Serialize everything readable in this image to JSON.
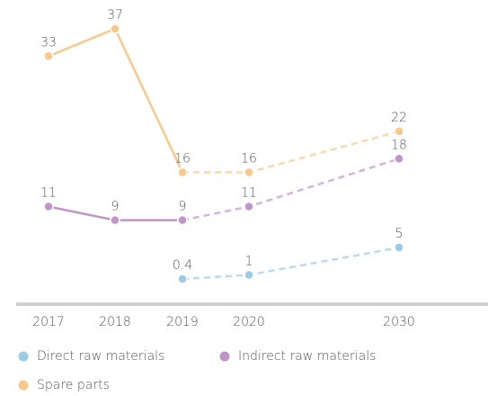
{
  "chart_data": {
    "type": "line",
    "categories": [
      "2017",
      "2018",
      "2019",
      "2020",
      "2030"
    ],
    "series": [
      {
        "name": "Direct raw materials",
        "color": "#9ccbe8",
        "values": [
          null,
          null,
          0.4,
          1,
          5
        ]
      },
      {
        "name": "Indirect raw materials",
        "color": "#bf95ca",
        "values": [
          11,
          9,
          9,
          11,
          18
        ]
      },
      {
        "name": "Spare parts",
        "color": "#f8c98a",
        "values": [
          33,
          37,
          16,
          16,
          22
        ]
      }
    ]
  }
}
